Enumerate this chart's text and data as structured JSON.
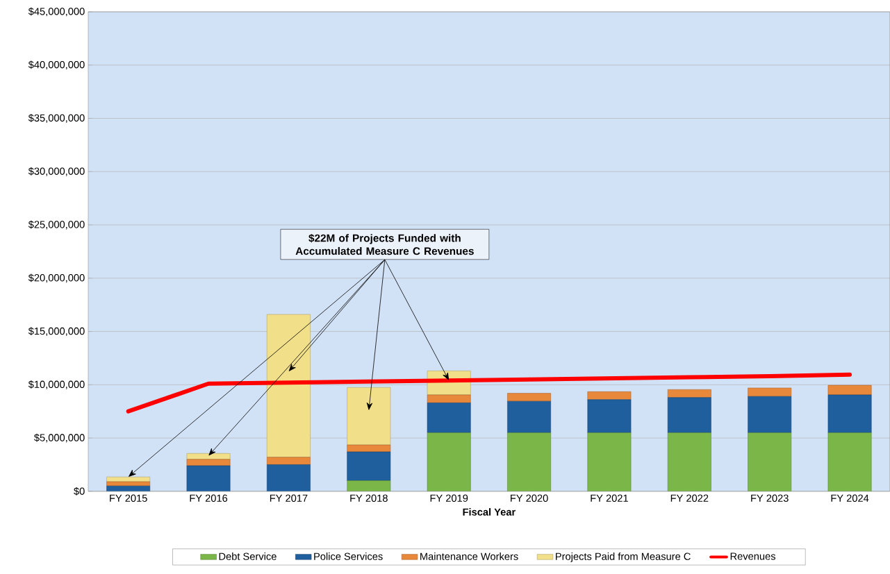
{
  "chart_data": {
    "type": "bar",
    "stacked": true,
    "xlabel": "Fiscal Year",
    "categories": [
      "FY 2015",
      "FY 2016",
      "FY 2017",
      "FY 2018",
      "FY 2019",
      "FY 2020",
      "FY 2021",
      "FY 2022",
      "FY 2023",
      "FY 2024"
    ],
    "series": [
      {
        "name": "Debt Service",
        "color": "#7ab648",
        "values": [
          0,
          0,
          0,
          1000000,
          5500000,
          5500000,
          5500000,
          5500000,
          5500000,
          5500000
        ]
      },
      {
        "name": "Police Services",
        "color": "#1f5f9e",
        "values": [
          500000,
          2400000,
          2500000,
          2700000,
          2800000,
          2950000,
          3100000,
          3300000,
          3400000,
          3550000
        ]
      },
      {
        "name": "Maintenance Workers",
        "color": "#e8883a",
        "values": [
          400000,
          600000,
          700000,
          650000,
          750000,
          750000,
          750000,
          750000,
          800000,
          900000
        ]
      },
      {
        "name": "Projects Paid from Measure C",
        "color": "#f2df8a",
        "values": [
          450000,
          550000,
          13400000,
          5400000,
          2250000,
          0,
          0,
          0,
          0,
          0
        ]
      },
      {
        "name": "Revenues",
        "type": "line",
        "color": "#ff0000",
        "values": [
          7500000,
          10100000,
          10200000,
          10300000,
          10400000,
          10500000,
          10600000,
          10700000,
          10800000,
          10950000
        ]
      }
    ],
    "ylim": [
      0,
      45000000
    ],
    "yticks": [
      {
        "value": 0,
        "label": "$0"
      },
      {
        "value": 5000000,
        "label": "$5,000,000"
      },
      {
        "value": 10000000,
        "label": "$10,000,000"
      },
      {
        "value": 15000000,
        "label": "$15,000,000"
      },
      {
        "value": 20000000,
        "label": "$20,000,000"
      },
      {
        "value": 25000000,
        "label": "$25,000,000"
      },
      {
        "value": 30000000,
        "label": "$30,000,000"
      },
      {
        "value": 35000000,
        "label": "$35,000,000"
      },
      {
        "value": 40000000,
        "label": "$40,000,000"
      },
      {
        "value": 45000000,
        "label": "$45,000,000"
      }
    ],
    "grid": "y",
    "legend": "bottom",
    "annotations": [
      {
        "text": "$22M of Projects Funded with Accumulated Measure C Revenues",
        "x": "FY 2015",
        "y": 1350000
      }
    ]
  }
}
